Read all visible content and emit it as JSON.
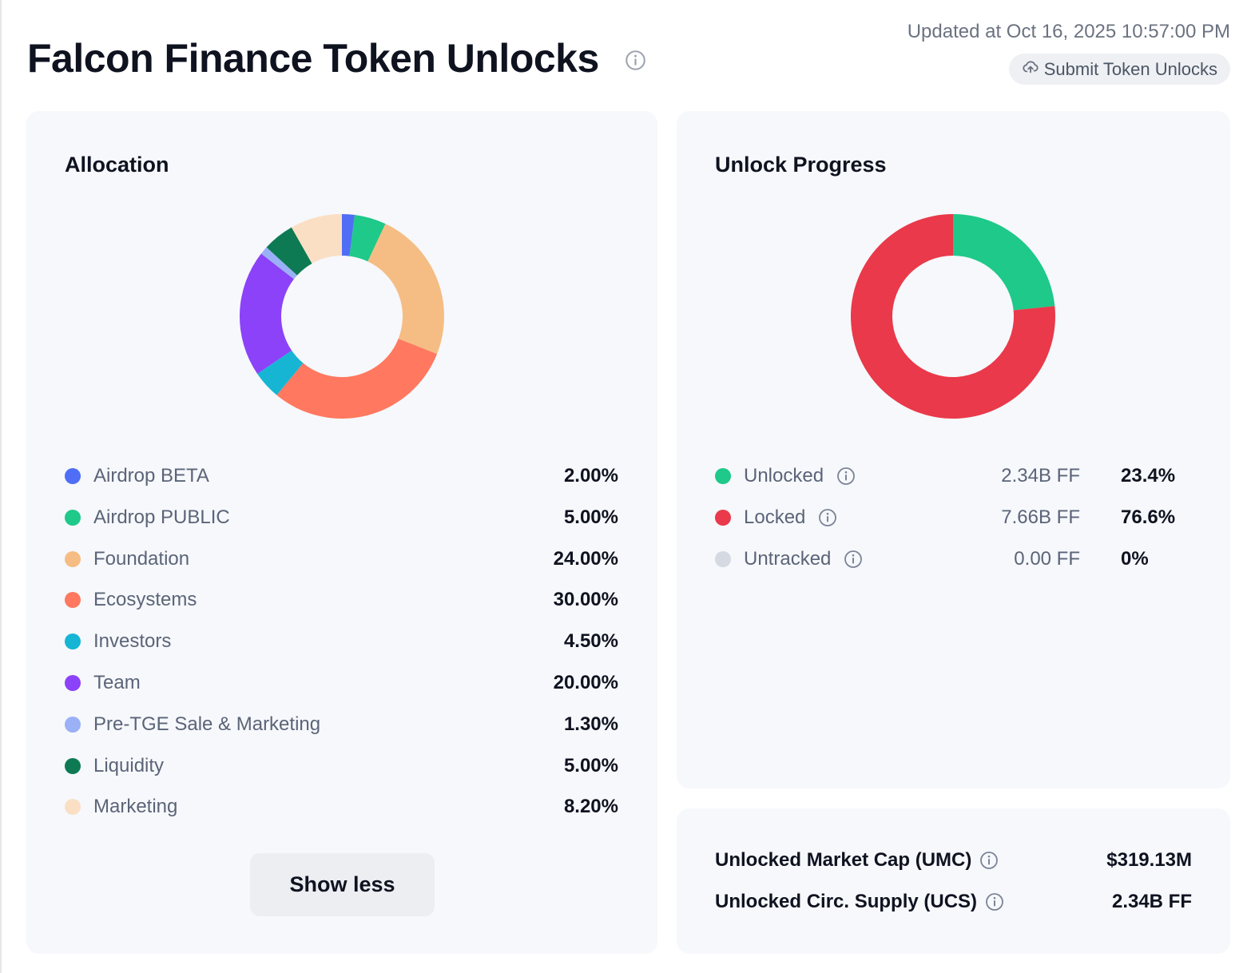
{
  "header": {
    "title": "Falcon Finance Token Unlocks",
    "updated": "Updated at Oct 16, 2025 10:57:00 PM",
    "submit_label": "Submit Token Unlocks"
  },
  "allocation": {
    "title": "Allocation",
    "items": [
      {
        "label": "Airdrop BETA",
        "pct": "2.00%",
        "value": 2.0,
        "color": "#4f6ef5"
      },
      {
        "label": "Airdrop PUBLIC",
        "pct": "5.00%",
        "value": 5.0,
        "color": "#1ec989"
      },
      {
        "label": "Foundation",
        "pct": "24.00%",
        "value": 24.0,
        "color": "#f5bd84"
      },
      {
        "label": "Ecosystems",
        "pct": "30.00%",
        "value": 30.0,
        "color": "#ff785f"
      },
      {
        "label": "Investors",
        "pct": "4.50%",
        "value": 4.5,
        "color": "#17b5d4"
      },
      {
        "label": "Team",
        "pct": "20.00%",
        "value": 20.0,
        "color": "#8c42f8"
      },
      {
        "label": "Pre-TGE Sale & Marketing",
        "pct": "1.30%",
        "value": 1.3,
        "color": "#9ab0f7"
      },
      {
        "label": "Liquidity",
        "pct": "5.00%",
        "value": 5.0,
        "color": "#0d7a53"
      },
      {
        "label": "Marketing",
        "pct": "8.20%",
        "value": 8.2,
        "color": "#fbdfc4"
      }
    ],
    "show_less_label": "Show less"
  },
  "unlock_progress": {
    "title": "Unlock Progress",
    "items": [
      {
        "label": "Unlocked",
        "amount": "2.34B FF",
        "pct": "23.4%",
        "value": 23.4,
        "color": "#1ec989"
      },
      {
        "label": "Locked",
        "amount": "7.66B FF",
        "pct": "76.6%",
        "value": 76.6,
        "color": "#e9394a"
      },
      {
        "label": "Untracked",
        "amount": "0.00 FF",
        "pct": "0%",
        "value": 0,
        "color": "#d4d9e2"
      }
    ]
  },
  "stats": [
    {
      "label": "Unlocked Market Cap (UMC)",
      "value": "$319.13M"
    },
    {
      "label": "Unlocked Circ. Supply (UCS)",
      "value": "2.34B FF"
    }
  ],
  "chart_data": [
    {
      "type": "pie",
      "title": "Allocation",
      "categories": [
        "Airdrop BETA",
        "Airdrop PUBLIC",
        "Foundation",
        "Ecosystems",
        "Investors",
        "Team",
        "Pre-TGE Sale & Marketing",
        "Liquidity",
        "Marketing"
      ],
      "values": [
        2.0,
        5.0,
        24.0,
        30.0,
        4.5,
        20.0,
        1.3,
        5.0,
        8.2
      ]
    },
    {
      "type": "pie",
      "title": "Unlock Progress",
      "categories": [
        "Unlocked",
        "Locked",
        "Untracked"
      ],
      "values": [
        23.4,
        76.6,
        0
      ]
    }
  ]
}
